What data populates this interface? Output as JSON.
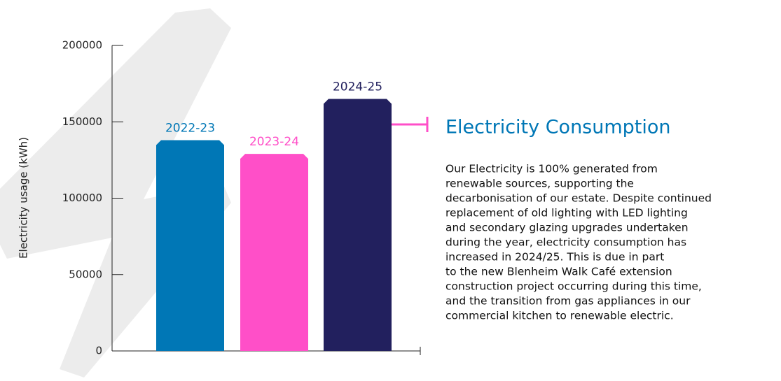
{
  "chart_data": {
    "type": "bar",
    "ylabel": "Electricity usage (kWh)",
    "categories": [
      "2022-23",
      "2023-24",
      "2024-25"
    ],
    "values": [
      138000,
      129000,
      165000
    ],
    "colors": [
      "#0077b6",
      "#ff4fc8",
      "#22205e"
    ],
    "ylim": [
      0,
      200000
    ],
    "yticks": [
      0,
      50000,
      100000,
      150000,
      200000
    ]
  },
  "panel": {
    "title": "Electricity Consumption",
    "body_lines": [
      "Our Electricity is 100% generated from",
      "renewable sources, supporting the",
      "decarbonisation of our estate. Despite continued",
      "replacement of old lighting with LED lighting",
      "and secondary glazing upgrades undertaken",
      "during the year, electricity consumption has",
      "increased in 2024/25. This is due in part",
      "to the new Blenheim Walk Café extension",
      "construction project occurring during this time,",
      "and the transition from gas appliances in our",
      "commercial kitchen to renewable electric."
    ]
  }
}
